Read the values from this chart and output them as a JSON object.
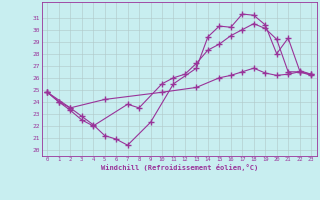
{
  "xlabel": "Windchill (Refroidissement éolien,°C)",
  "bg_color": "#c8eef0",
  "line_color": "#993399",
  "spine_color": "#993399",
  "grid_color": "#b0c8c8",
  "xlim": [
    -0.5,
    23.5
  ],
  "ylim": [
    19.5,
    32.3
  ],
  "xticks": [
    0,
    1,
    2,
    3,
    4,
    5,
    6,
    7,
    8,
    9,
    10,
    11,
    12,
    13,
    14,
    15,
    16,
    17,
    18,
    19,
    20,
    21,
    22,
    23
  ],
  "yticks": [
    20,
    21,
    22,
    23,
    24,
    25,
    26,
    27,
    28,
    29,
    30,
    31
  ],
  "line1_x": [
    0,
    1,
    2,
    3,
    4,
    5,
    6,
    7,
    9,
    11,
    13,
    14,
    15,
    16,
    17,
    18,
    19,
    20,
    21,
    22,
    23
  ],
  "line1_y": [
    24.8,
    24.0,
    23.5,
    22.8,
    22.1,
    21.2,
    20.9,
    20.4,
    22.3,
    25.5,
    26.8,
    29.4,
    30.3,
    30.2,
    31.3,
    31.2,
    30.4,
    28.0,
    29.3,
    26.6,
    26.3
  ],
  "line2_x": [
    0,
    2,
    5,
    10,
    13,
    15,
    16,
    17,
    18,
    19,
    20,
    21,
    22,
    23
  ],
  "line2_y": [
    24.8,
    23.5,
    24.2,
    24.8,
    25.2,
    26.0,
    26.2,
    26.5,
    26.8,
    26.4,
    26.2,
    26.3,
    26.5,
    26.2
  ],
  "line3_x": [
    0,
    1,
    2,
    3,
    4,
    7,
    8,
    10,
    11,
    12,
    13,
    14,
    15,
    16,
    17,
    18,
    19,
    20,
    21,
    22,
    23
  ],
  "line3_y": [
    24.8,
    24.0,
    23.3,
    22.5,
    22.0,
    23.8,
    23.5,
    25.5,
    26.0,
    26.3,
    27.2,
    28.3,
    28.8,
    29.5,
    30.0,
    30.5,
    30.1,
    29.2,
    26.5,
    26.5,
    26.3
  ]
}
